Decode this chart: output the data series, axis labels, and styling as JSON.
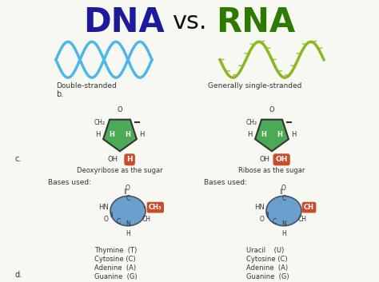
{
  "title_dna": "DNA",
  "title_vs": "vs.",
  "title_rna": "RNA",
  "dna_color": "#1e1a9c",
  "rna_color": "#2d7a00",
  "vs_color": "#111111",
  "bg_color": "#f8f8f2",
  "highlight_color": "#cc4b2a",
  "sugar_color": "#4aaa55",
  "base_color": "#6b9fcc",
  "dna_helix_color": "#4db8e8",
  "rna_helix_color": "#8ab820",
  "label_b": "b.",
  "label_c": "c.",
  "label_d": "d.",
  "label_dna_strand": "Double-stranded",
  "label_rna_strand": "Generally single-stranded",
  "label_dna_sugar": "Deoxyribose as the sugar",
  "label_rna_sugar": "Ribose as the sugar",
  "label_bases_used": "Bases used:",
  "dna_bases": [
    "Thymine  (T)",
    "Cytosine (C)",
    "Adenine  (A)",
    "Guanine  (G)"
  ],
  "rna_bases": [
    "Uracil    (U)",
    "Cytosine (C)",
    "Adenine  (A)",
    "Guanine  (G)"
  ]
}
